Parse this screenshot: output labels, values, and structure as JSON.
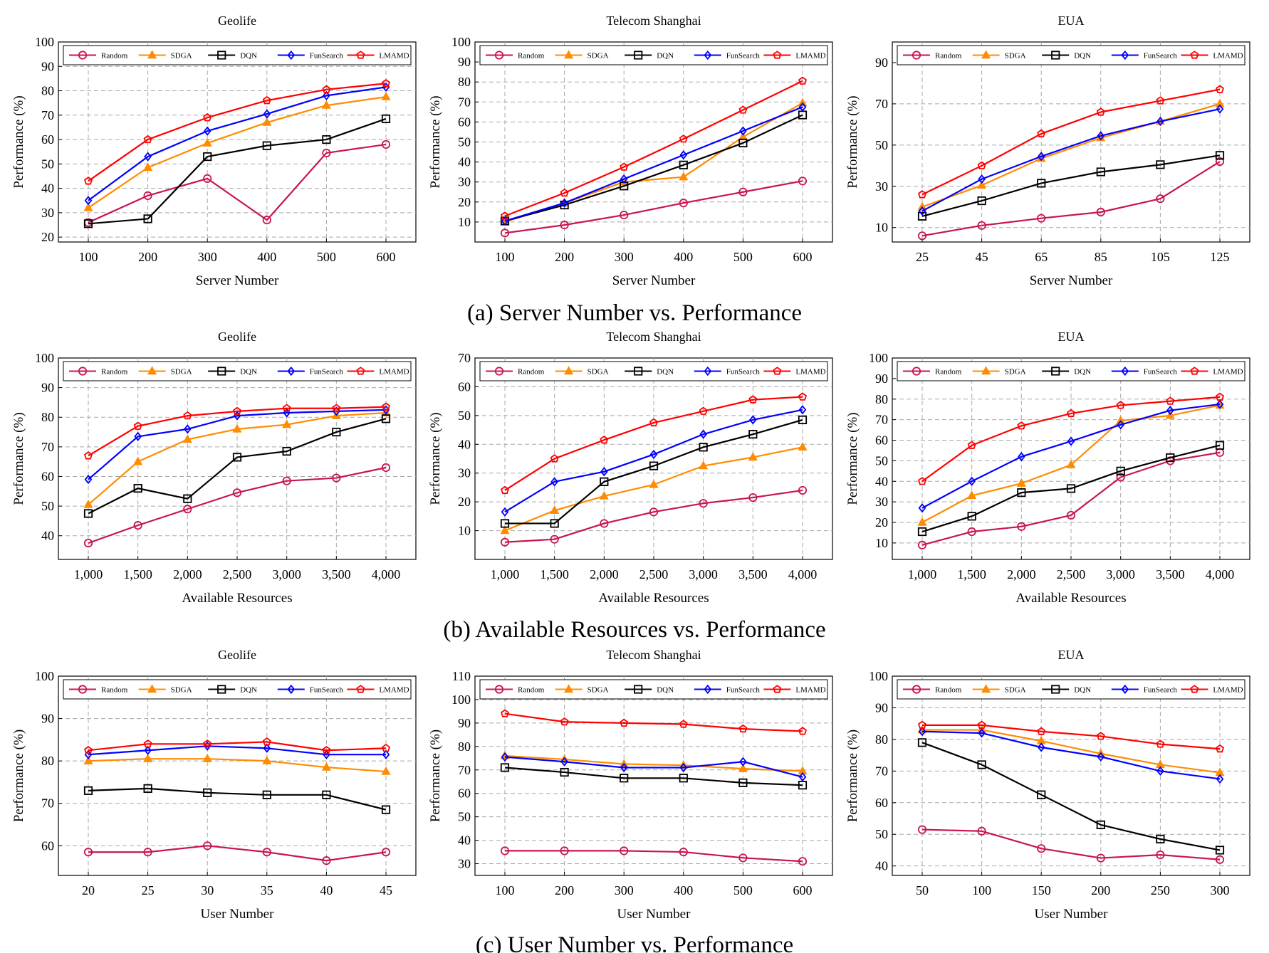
{
  "series_names": [
    "Random",
    "SDGA",
    "DQN",
    "FunSearch",
    "LMAMD"
  ],
  "series_colors": [
    "#c8154e",
    "#ff8c00",
    "#000000",
    "#0000ff",
    "#ff0000"
  ],
  "series_markers": [
    "circle",
    "triangle",
    "square",
    "diamond",
    "pentagon"
  ],
  "row_captions": [
    "(a) Server Number vs. Performance",
    "(b) Available Resources vs. Performance",
    "(c) User Number vs. Performance"
  ],
  "chart_data": [
    {
      "type": "line",
      "title": "Geolife",
      "xlabel": "Server Number",
      "ylabel": "Performance (%)",
      "x": [
        100,
        200,
        300,
        400,
        500,
        600
      ],
      "x_ticklabels": [
        "100",
        "200",
        "300",
        "400",
        "500",
        "600"
      ],
      "ylim": [
        18,
        100
      ],
      "yticks": [
        20,
        30,
        40,
        50,
        60,
        70,
        80,
        90,
        100
      ],
      "grid": true,
      "legend": "top, single row",
      "series": [
        {
          "name": "Random",
          "values": [
            26,
            37,
            44,
            27,
            54.5,
            58
          ]
        },
        {
          "name": "SDGA",
          "values": [
            32,
            48.5,
            58.5,
            67,
            74,
            77.5
          ]
        },
        {
          "name": "DQN",
          "values": [
            25.5,
            27.5,
            53,
            57.5,
            60,
            68.5
          ]
        },
        {
          "name": "FunSearch",
          "values": [
            35,
            53,
            63.5,
            70.5,
            78,
            81.5
          ]
        },
        {
          "name": "LMAMD",
          "values": [
            43,
            60,
            69,
            76,
            80.5,
            83
          ]
        }
      ]
    },
    {
      "type": "line",
      "title": "Telecom Shanghai",
      "xlabel": "Server Number",
      "ylabel": "Performance (%)",
      "x": [
        100,
        200,
        300,
        400,
        500,
        600
      ],
      "x_ticklabels": [
        "100",
        "200",
        "300",
        "400",
        "500",
        "600"
      ],
      "ylim": [
        0,
        100
      ],
      "yticks": [
        10,
        20,
        30,
        40,
        50,
        60,
        70,
        80,
        90,
        100
      ],
      "grid": true,
      "legend": "top, single row",
      "series": [
        {
          "name": "Random",
          "values": [
            4.5,
            8.5,
            13.5,
            19.5,
            25,
            30.5
          ]
        },
        {
          "name": "SDGA",
          "values": [
            10,
            19.5,
            30,
            32.5,
            52.5,
            69.5
          ]
        },
        {
          "name": "DQN",
          "values": [
            10.5,
            18.5,
            28,
            38.5,
            49.5,
            63.5
          ]
        },
        {
          "name": "FunSearch",
          "values": [
            10.5,
            19.5,
            31.5,
            43.5,
            55.5,
            67.5
          ]
        },
        {
          "name": "LMAMD",
          "values": [
            13,
            24.5,
            37.5,
            51.5,
            66,
            80.5
          ]
        }
      ]
    },
    {
      "type": "line",
      "title": "EUA",
      "xlabel": "Server Number",
      "ylabel": "Performance (%)",
      "x": [
        25,
        45,
        65,
        85,
        105,
        125
      ],
      "x_ticklabels": [
        "25",
        "45",
        "65",
        "85",
        "105",
        "125"
      ],
      "ylim": [
        3,
        100
      ],
      "yticks": [
        10,
        30,
        50,
        70,
        90
      ],
      "grid": true,
      "legend": "top, single row",
      "series": [
        {
          "name": "Random",
          "values": [
            6,
            11,
            14.5,
            17.5,
            24,
            42
          ]
        },
        {
          "name": "SDGA",
          "values": [
            20,
            30.5,
            43.5,
            53.5,
            61.5,
            70
          ]
        },
        {
          "name": "DQN",
          "values": [
            15.5,
            23,
            31.5,
            37,
            40.5,
            45
          ]
        },
        {
          "name": "FunSearch",
          "values": [
            18,
            33.5,
            44.5,
            54.5,
            61.5,
            67.5
          ]
        },
        {
          "name": "LMAMD",
          "values": [
            26,
            40,
            55.5,
            66,
            71.5,
            77
          ]
        }
      ]
    },
    {
      "type": "line",
      "title": "Geolife",
      "xlabel": "Available Resources",
      "ylabel": "Performance (%)",
      "x": [
        1000,
        1500,
        2000,
        2500,
        3000,
        3500,
        4000
      ],
      "x_ticklabels": [
        "1,000",
        "1,500",
        "2,000",
        "2,500",
        "3,000",
        "3,500",
        "4,000"
      ],
      "ylim": [
        32,
        100
      ],
      "yticks": [
        40,
        50,
        60,
        70,
        80,
        90,
        100
      ],
      "grid": true,
      "legend": "top, single row",
      "series": [
        {
          "name": "Random",
          "values": [
            37.5,
            43.5,
            49,
            54.5,
            58.5,
            59.5,
            63
          ]
        },
        {
          "name": "SDGA",
          "values": [
            50.5,
            65,
            72.5,
            76,
            77.5,
            80.5,
            81.5
          ]
        },
        {
          "name": "DQN",
          "values": [
            47.5,
            56,
            52.5,
            66.5,
            68.5,
            75,
            79.5
          ]
        },
        {
          "name": "FunSearch",
          "values": [
            59,
            73.5,
            76,
            80.5,
            81.5,
            82,
            82.5
          ]
        },
        {
          "name": "LMAMD",
          "values": [
            67,
            77,
            80.5,
            82,
            83,
            83,
            83.5
          ]
        }
      ]
    },
    {
      "type": "line",
      "title": "Telecom Shanghai",
      "xlabel": "Available Resources",
      "ylabel": "Performance (%)",
      "x": [
        1000,
        1500,
        2000,
        2500,
        3000,
        3500,
        4000
      ],
      "x_ticklabels": [
        "1,000",
        "1,500",
        "2,000",
        "2,500",
        "3,000",
        "3,500",
        "4,000"
      ],
      "ylim": [
        0,
        70
      ],
      "yticks": [
        10,
        20,
        30,
        40,
        50,
        60,
        70
      ],
      "grid": true,
      "legend": "top, single row",
      "series": [
        {
          "name": "Random",
          "values": [
            6,
            7,
            12.5,
            16.5,
            19.5,
            21.5,
            24
          ]
        },
        {
          "name": "SDGA",
          "values": [
            10,
            17,
            22,
            26,
            32.5,
            35.5,
            39
          ]
        },
        {
          "name": "DQN",
          "values": [
            12.5,
            12.5,
            27,
            32.5,
            39,
            43.5,
            48.5
          ]
        },
        {
          "name": "FunSearch",
          "values": [
            16.5,
            27,
            30.5,
            36.5,
            43.5,
            48.5,
            52
          ]
        },
        {
          "name": "LMAMD",
          "values": [
            24,
            35,
            41.5,
            47.5,
            51.5,
            55.5,
            56.5
          ]
        }
      ]
    },
    {
      "type": "line",
      "title": "EUA",
      "xlabel": "Available Resources",
      "ylabel": "Performance (%)",
      "x": [
        1000,
        1500,
        2000,
        2500,
        3000,
        3500,
        4000
      ],
      "x_ticklabels": [
        "1,000",
        "1,500",
        "2,000",
        "2,500",
        "3,000",
        "3,500",
        "4,000"
      ],
      "ylim": [
        2,
        100
      ],
      "yticks": [
        10,
        20,
        30,
        40,
        50,
        60,
        70,
        80,
        90,
        100
      ],
      "grid": true,
      "legend": "top, single row",
      "series": [
        {
          "name": "Random",
          "values": [
            9,
            15.5,
            18,
            23.5,
            42,
            50,
            54
          ]
        },
        {
          "name": "SDGA",
          "values": [
            20,
            33,
            39,
            48,
            69.5,
            72,
            77
          ]
        },
        {
          "name": "DQN",
          "values": [
            15.5,
            23,
            34.5,
            36.5,
            45,
            51.5,
            57.5
          ]
        },
        {
          "name": "FunSearch",
          "values": [
            27,
            40,
            52,
            59.5,
            67.5,
            74.5,
            77.5
          ]
        },
        {
          "name": "LMAMD",
          "values": [
            40,
            57.5,
            67,
            73,
            77,
            79,
            81
          ]
        }
      ]
    },
    {
      "type": "line",
      "title": "Geolife",
      "xlabel": "User Number",
      "ylabel": "Performance (%)",
      "x": [
        20,
        25,
        30,
        35,
        40,
        45
      ],
      "x_ticklabels": [
        "20",
        "25",
        "30",
        "35",
        "40",
        "45"
      ],
      "ylim": [
        53,
        100
      ],
      "yticks": [
        60,
        70,
        80,
        90,
        100
      ],
      "grid": true,
      "legend": "top, single row",
      "series": [
        {
          "name": "Random",
          "values": [
            58.5,
            58.5,
            60,
            58.5,
            56.5,
            58.5
          ]
        },
        {
          "name": "SDGA",
          "values": [
            80,
            80.5,
            80.5,
            80,
            78.5,
            77.5
          ]
        },
        {
          "name": "DQN",
          "values": [
            73,
            73.5,
            72.5,
            72,
            72,
            68.5
          ]
        },
        {
          "name": "FunSearch",
          "values": [
            81.5,
            82.5,
            83.5,
            83,
            81.5,
            81.5
          ]
        },
        {
          "name": "LMAMD",
          "values": [
            82.5,
            84,
            84,
            84.5,
            82.5,
            83
          ]
        }
      ]
    },
    {
      "type": "line",
      "title": "Telecom Shanghai",
      "xlabel": "User Number",
      "ylabel": "Performance (%)",
      "x": [
        100,
        200,
        300,
        400,
        500,
        600
      ],
      "x_ticklabels": [
        "100",
        "200",
        "300",
        "400",
        "500",
        "600"
      ],
      "ylim": [
        25,
        110
      ],
      "yticks": [
        30,
        40,
        50,
        60,
        70,
        80,
        90,
        100,
        110
      ],
      "grid": true,
      "legend": "top, single row",
      "series": [
        {
          "name": "Random",
          "values": [
            35.5,
            35.5,
            35.5,
            35,
            32.5,
            31
          ]
        },
        {
          "name": "SDGA",
          "values": [
            76,
            74.5,
            72.5,
            72,
            70.5,
            69.5
          ]
        },
        {
          "name": "DQN",
          "values": [
            71,
            69,
            66.5,
            66.5,
            64.5,
            63.5
          ]
        },
        {
          "name": "FunSearch",
          "values": [
            75.5,
            73.5,
            71,
            71,
            73.5,
            67
          ]
        },
        {
          "name": "LMAMD",
          "values": [
            94,
            90.5,
            90,
            89.5,
            87.5,
            86.5
          ]
        }
      ]
    },
    {
      "type": "line",
      "title": "EUA",
      "xlabel": "User Number",
      "ylabel": "Performance (%)",
      "x": [
        50,
        100,
        150,
        200,
        250,
        300
      ],
      "x_ticklabels": [
        "50",
        "100",
        "150",
        "200",
        "250",
        "300"
      ],
      "ylim": [
        37,
        100
      ],
      "yticks": [
        40,
        50,
        60,
        70,
        80,
        90,
        100
      ],
      "grid": true,
      "legend": "top, single row",
      "series": [
        {
          "name": "Random",
          "values": [
            51.5,
            51,
            45.5,
            42.5,
            43.5,
            42
          ]
        },
        {
          "name": "SDGA",
          "values": [
            83,
            83,
            79.5,
            75.5,
            72,
            69.5
          ]
        },
        {
          "name": "DQN",
          "values": [
            79,
            72,
            62.5,
            53,
            48.5,
            45
          ]
        },
        {
          "name": "FunSearch",
          "values": [
            82.5,
            82,
            77.5,
            74.5,
            70,
            67.5
          ]
        },
        {
          "name": "LMAMD",
          "values": [
            84.5,
            84.5,
            82.5,
            81,
            78.5,
            77
          ]
        }
      ]
    }
  ]
}
